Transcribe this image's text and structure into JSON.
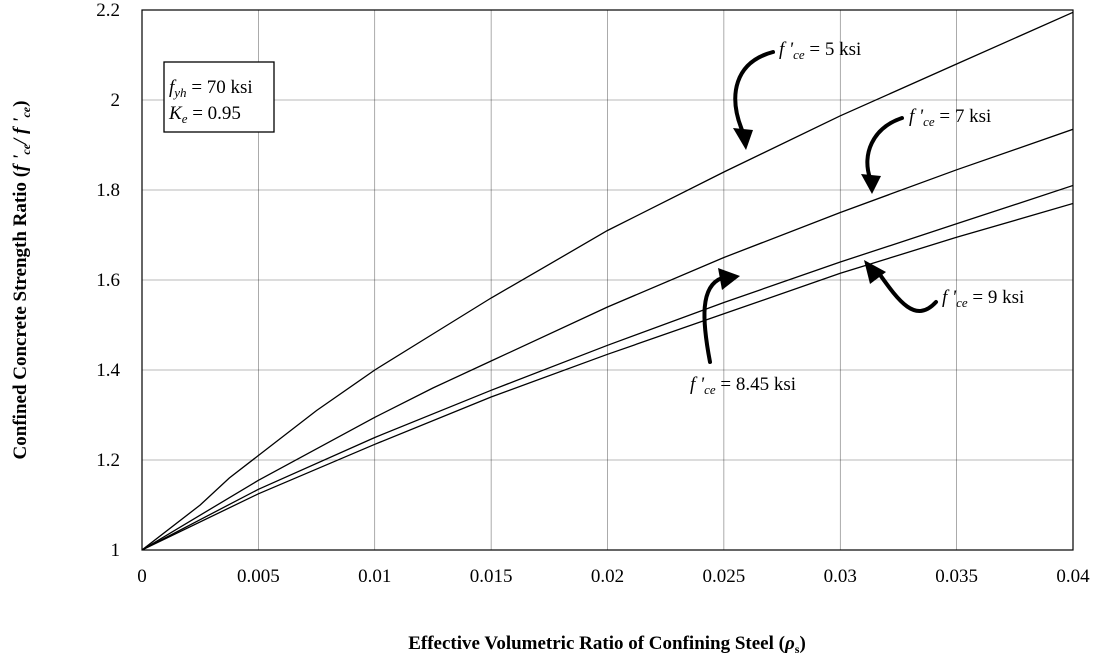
{
  "chart_data": {
    "type": "line",
    "xlabel": {
      "main": "Effective Volumetric Ratio of Confining Steel (",
      "symbol": "ρ",
      "sub": "s",
      "close": ")"
    },
    "ylabel": {
      "main": "Confined Concrete Strength Ratio (",
      "f1": "f '",
      "sub1": "ce",
      "slash": "/",
      "f2": " f '",
      "sub2": "ce",
      "close": ")"
    },
    "xlim": [
      0,
      0.04
    ],
    "ylim": [
      1,
      2.2
    ],
    "x_ticks": [
      {
        "value": 0,
        "label": "0"
      },
      {
        "value": 0.005,
        "label": "0.005"
      },
      {
        "value": 0.01,
        "label": "0.01"
      },
      {
        "value": 0.015,
        "label": "0.015"
      },
      {
        "value": 0.02,
        "label": "0.02"
      },
      {
        "value": 0.025,
        "label": "0.025"
      },
      {
        "value": 0.03,
        "label": "0.03"
      },
      {
        "value": 0.035,
        "label": "0.035"
      },
      {
        "value": 0.04,
        "label": "0.04"
      }
    ],
    "y_ticks": [
      {
        "value": 1,
        "label": "1"
      },
      {
        "value": 1.2,
        "label": "1.2"
      },
      {
        "value": 1.4,
        "label": "1.4"
      },
      {
        "value": 1.6,
        "label": "1.6"
      },
      {
        "value": 1.8,
        "label": "1.8"
      },
      {
        "value": 2,
        "label": "2"
      },
      {
        "value": 2.2,
        "label": "2.2"
      }
    ],
    "grid": true,
    "series": [
      {
        "id": "fce-5",
        "x": [
          0,
          0.0025,
          0.00375,
          0.005,
          0.0075,
          0.01,
          0.0125,
          0.015,
          0.0175,
          0.02,
          0.025,
          0.03,
          0.035,
          0.04
        ],
        "y": [
          1,
          1.1,
          1.16,
          1.21,
          1.31,
          1.4,
          1.48,
          1.56,
          1.635,
          1.71,
          1.84,
          1.965,
          2.08,
          2.195
        ]
      },
      {
        "id": "fce-7",
        "x": [
          0,
          0.005,
          0.01,
          0.0125,
          0.015,
          0.02,
          0.025,
          0.03,
          0.035,
          0.04
        ],
        "y": [
          1,
          1.155,
          1.295,
          1.36,
          1.42,
          1.54,
          1.65,
          1.75,
          1.845,
          1.935
        ]
      },
      {
        "id": "fce-8-45",
        "x": [
          0,
          0.005,
          0.01,
          0.015,
          0.02,
          0.025,
          0.03,
          0.035,
          0.04
        ],
        "y": [
          1,
          1.135,
          1.25,
          1.355,
          1.455,
          1.55,
          1.64,
          1.725,
          1.81
        ]
      },
      {
        "id": "fce-9",
        "x": [
          0,
          0.005,
          0.01,
          0.015,
          0.02,
          0.025,
          0.03,
          0.035,
          0.04
        ],
        "y": [
          1,
          1.125,
          1.235,
          1.34,
          1.435,
          1.525,
          1.615,
          1.695,
          1.77
        ]
      }
    ],
    "labels": [
      {
        "series": "fce-5",
        "f": "f '",
        "sub": "ce",
        "rest": " = 5 ksi"
      },
      {
        "series": "fce-7",
        "f": "f '",
        "sub": "ce",
        "rest": " = 7 ksi"
      },
      {
        "series": "fce-9",
        "f": "f '",
        "sub": "ce",
        "rest": " = 9 ksi"
      },
      {
        "series": "fce-8-45",
        "f": "f '",
        "sub": "ce",
        "rest": " = 8.45 ksi"
      }
    ],
    "params_box": [
      {
        "var": "f",
        "sub": "yh",
        "rest": " = 70 ksi"
      },
      {
        "var": "K",
        "sub": "e",
        "rest": " = 0.95"
      }
    ]
  }
}
